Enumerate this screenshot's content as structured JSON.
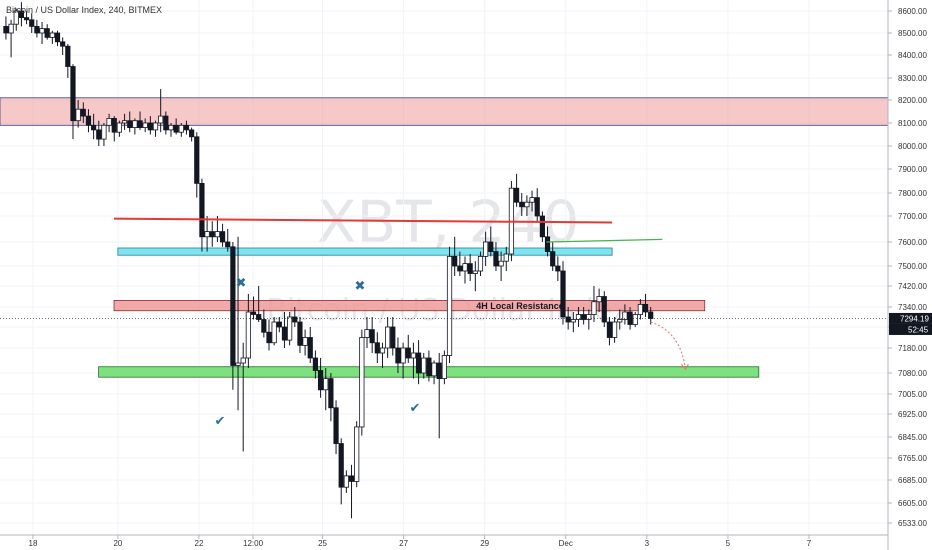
{
  "header": {
    "title": "Bitcoin / US Dollar Index, 240, BITMEX"
  },
  "watermark": {
    "symbol": "XBT, 240",
    "name": "Bitcoin / US Dollar Index"
  },
  "price_axis": {
    "current_price": "7294.19",
    "countdown": "52:45",
    "current_price_color": "#131722",
    "countdown_color": "#131722"
  },
  "colors": {
    "up_candle": "#ffffff",
    "down_candle": "#131722",
    "resistance_zone": "#ef9a9a",
    "support_zone": "#66dd66",
    "mid_zone": "#66e0f0",
    "red_line": "#e53935",
    "green_line": "#4caf50",
    "mark_color": "#2c6e96",
    "projection": "#e57373"
  },
  "annotations": {
    "local_resistance_label": "4H Local Resistance",
    "x_mark": "✖",
    "check_mark": "✔"
  },
  "chart_data": {
    "type": "candlestick",
    "title": "Bitcoin / US Dollar Index, 240, BITMEX",
    "ylim": [
      6480,
      8680
    ],
    "y_ticks": [
      {
        "value": 8600,
        "label": "8600.00"
      },
      {
        "value": 8500,
        "label": "8500.00"
      },
      {
        "value": 8400,
        "label": "8400.00"
      },
      {
        "value": 8300,
        "label": "8300.00"
      },
      {
        "value": 8200,
        "label": "8200.00"
      },
      {
        "value": 8100,
        "label": "8100.00"
      },
      {
        "value": 8000,
        "label": "8000.00"
      },
      {
        "value": 7900,
        "label": "7900.00"
      },
      {
        "value": 7800,
        "label": "7800.00"
      },
      {
        "value": 7700,
        "label": "7700.00"
      },
      {
        "value": 7600,
        "label": "7600.00"
      },
      {
        "value": 7500,
        "label": "7500.00"
      },
      {
        "value": 7420,
        "label": "7420.00"
      },
      {
        "value": 7340,
        "label": "7340.00"
      },
      {
        "value": 7260,
        "label": "7260.00"
      },
      {
        "value": 7180,
        "label": "7180.00"
      },
      {
        "value": 7080,
        "label": "7080.00"
      },
      {
        "value": 7005,
        "label": "7005.00"
      },
      {
        "value": 6925,
        "label": "6925.00"
      },
      {
        "value": 6845,
        "label": "6845.00"
      },
      {
        "value": 6765,
        "label": "6765.00"
      },
      {
        "value": 6685,
        "label": "6685.00"
      },
      {
        "value": 6605,
        "label": "6605.00"
      },
      {
        "value": 6533,
        "label": "6533.00"
      }
    ],
    "x_ticks": [
      "18",
      "20",
      "22",
      "12:00",
      "25",
      "27",
      "29",
      "Dec",
      "3",
      "5",
      "7"
    ],
    "x_tick_index": [
      7,
      29,
      50,
      64,
      82,
      103,
      124,
      145,
      166,
      187,
      208
    ],
    "bar_count": 230,
    "candles": [
      [
        8530,
        8575,
        8470,
        8500
      ],
      [
        8500,
        8560,
        8390,
        8540
      ],
      [
        8540,
        8610,
        8510,
        8600
      ],
      [
        8600,
        8640,
        8530,
        8570
      ],
      [
        8570,
        8600,
        8540,
        8560
      ],
      [
        8560,
        8590,
        8500,
        8530
      ],
      [
        8530,
        8560,
        8480,
        8500
      ],
      [
        8500,
        8550,
        8450,
        8520
      ],
      [
        8520,
        8540,
        8470,
        8480
      ],
      [
        8480,
        8510,
        8450,
        8500
      ],
      [
        8500,
        8510,
        8440,
        8460
      ],
      [
        8460,
        8480,
        8400,
        8440
      ],
      [
        8440,
        8450,
        8300,
        8350
      ],
      [
        8350,
        8360,
        8030,
        8110
      ],
      [
        8110,
        8200,
        8080,
        8160
      ],
      [
        8160,
        8190,
        8100,
        8130
      ],
      [
        8130,
        8160,
        8060,
        8090
      ],
      [
        8090,
        8140,
        8030,
        8070
      ],
      [
        8070,
        8110,
        8000,
        8030
      ],
      [
        8030,
        8100,
        8000,
        8090
      ],
      [
        8090,
        8140,
        8060,
        8120
      ],
      [
        8120,
        8130,
        8020,
        8060
      ],
      [
        8060,
        8110,
        8040,
        8100
      ],
      [
        8100,
        8140,
        8070,
        8110
      ],
      [
        8110,
        8150,
        8060,
        8080
      ],
      [
        8080,
        8120,
        8050,
        8110
      ],
      [
        8110,
        8150,
        8070,
        8080
      ],
      [
        8080,
        8120,
        8060,
        8100
      ],
      [
        8100,
        8130,
        8050,
        8070
      ],
      [
        8070,
        8110,
        8040,
        8100
      ],
      [
        8100,
        8250,
        8060,
        8130
      ],
      [
        8130,
        8150,
        8050,
        8070
      ],
      [
        8070,
        8100,
        8040,
        8090
      ],
      [
        8090,
        8120,
        8050,
        8060
      ],
      [
        8060,
        8100,
        8040,
        8090
      ],
      [
        8090,
        8110,
        8050,
        8070
      ],
      [
        8070,
        8080,
        8020,
        8040
      ],
      [
        8040,
        8060,
        7780,
        7840
      ],
      [
        7840,
        7860,
        7560,
        7620
      ],
      [
        7620,
        7700,
        7560,
        7640
      ],
      [
        7640,
        7680,
        7580,
        7620
      ],
      [
        7620,
        7700,
        7600,
        7640
      ],
      [
        7640,
        7670,
        7580,
        7600
      ],
      [
        7600,
        7650,
        7560,
        7580
      ],
      [
        7580,
        7600,
        7020,
        7110
      ],
      [
        7110,
        7620,
        6940,
        7120
      ],
      [
        7120,
        7200,
        6790,
        7140
      ],
      [
        7140,
        7390,
        7100,
        7320
      ],
      [
        7320,
        7380,
        7290,
        7310
      ],
      [
        7310,
        7420,
        7280,
        7290
      ],
      [
        7290,
        7330,
        7220,
        7240
      ],
      [
        7240,
        7290,
        7170,
        7200
      ],
      [
        7200,
        7300,
        7190,
        7280
      ],
      [
        7280,
        7300,
        7240,
        7260
      ],
      [
        7260,
        7320,
        7180,
        7210
      ],
      [
        7210,
        7320,
        7190,
        7300
      ],
      [
        7300,
        7340,
        7260,
        7280
      ],
      [
        7280,
        7300,
        7160,
        7190
      ],
      [
        7190,
        7250,
        7150,
        7220
      ],
      [
        7220,
        7260,
        7120,
        7140
      ],
      [
        7140,
        7170,
        7060,
        7090
      ],
      [
        7090,
        7140,
        6990,
        7020
      ],
      [
        7020,
        7100,
        6940,
        7060
      ],
      [
        7060,
        7080,
        6900,
        6950
      ],
      [
        6950,
        6980,
        6780,
        6820
      ],
      [
        6820,
        6840,
        6600,
        6660
      ],
      [
        6660,
        6720,
        6640,
        6700
      ],
      [
        6700,
        6740,
        6550,
        6680
      ],
      [
        6680,
        6900,
        6660,
        6880
      ],
      [
        6880,
        7250,
        6850,
        7220
      ],
      [
        7220,
        7300,
        7180,
        7250
      ],
      [
        7250,
        7300,
        7160,
        7200
      ],
      [
        7200,
        7240,
        7120,
        7160
      ],
      [
        7160,
        7200,
        7100,
        7180
      ],
      [
        7180,
        7300,
        7140,
        7260
      ],
      [
        7260,
        7300,
        7150,
        7180
      ],
      [
        7180,
        7220,
        7080,
        7120
      ],
      [
        7120,
        7200,
        7060,
        7180
      ],
      [
        7180,
        7230,
        7120,
        7140
      ],
      [
        7140,
        7200,
        7060,
        7160
      ],
      [
        7160,
        7210,
        7040,
        7080
      ],
      [
        7080,
        7160,
        7060,
        7140
      ],
      [
        7140,
        7170,
        7050,
        7070
      ],
      [
        7070,
        7130,
        7040,
        7120
      ],
      [
        7120,
        7160,
        6840,
        7060
      ],
      [
        7060,
        7170,
        7040,
        7150
      ],
      [
        7150,
        7580,
        7120,
        7540
      ],
      [
        7540,
        7620,
        7460,
        7500
      ],
      [
        7500,
        7560,
        7460,
        7480
      ],
      [
        7480,
        7540,
        7430,
        7510
      ],
      [
        7510,
        7550,
        7440,
        7470
      ],
      [
        7470,
        7520,
        7400,
        7480
      ],
      [
        7480,
        7560,
        7460,
        7540
      ],
      [
        7540,
        7640,
        7500,
        7600
      ],
      [
        7600,
        7660,
        7540,
        7560
      ],
      [
        7560,
        7600,
        7480,
        7500
      ],
      [
        7500,
        7560,
        7440,
        7520
      ],
      [
        7520,
        7580,
        7480,
        7550
      ],
      [
        7550,
        7850,
        7520,
        7820
      ],
      [
        7820,
        7880,
        7740,
        7760
      ],
      [
        7760,
        7800,
        7700,
        7740
      ],
      [
        7740,
        7790,
        7700,
        7760
      ],
      [
        7760,
        7810,
        7720,
        7780
      ],
      [
        7780,
        7820,
        7680,
        7700
      ],
      [
        7700,
        7720,
        7600,
        7620
      ],
      [
        7620,
        7660,
        7540,
        7560
      ],
      [
        7560,
        7600,
        7480,
        7500
      ],
      [
        7500,
        7540,
        7440,
        7480
      ],
      [
        7480,
        7520,
        7270,
        7300
      ],
      [
        7300,
        7340,
        7250,
        7280
      ],
      [
        7280,
        7320,
        7240,
        7290
      ],
      [
        7290,
        7340,
        7260,
        7310
      ],
      [
        7310,
        7340,
        7270,
        7290
      ],
      [
        7290,
        7330,
        7250,
        7310
      ],
      [
        7310,
        7420,
        7280,
        7360
      ],
      [
        7360,
        7410,
        7320,
        7380
      ],
      [
        7380,
        7400,
        7260,
        7280
      ],
      [
        7280,
        7300,
        7190,
        7220
      ],
      [
        7220,
        7300,
        7200,
        7280
      ],
      [
        7280,
        7330,
        7250,
        7290
      ],
      [
        7290,
        7350,
        7270,
        7320
      ],
      [
        7320,
        7340,
        7250,
        7270
      ],
      [
        7270,
        7320,
        7260,
        7310
      ],
      [
        7310,
        7370,
        7290,
        7350
      ],
      [
        7350,
        7390,
        7300,
        7320
      ],
      [
        7320,
        7340,
        7270,
        7294
      ]
    ],
    "zones": [
      {
        "name": "upper-resistance",
        "from": 8090,
        "to": 8210,
        "bar_start": 0,
        "bar_end": 230
      },
      {
        "name": "mid-level",
        "from": 7545,
        "to": 7575,
        "bar_start": 29,
        "bar_end": 157
      },
      {
        "name": "local-resistance",
        "from": 7325,
        "to": 7365,
        "bar_start": 28,
        "bar_end": 181
      },
      {
        "name": "support",
        "from": 7065,
        "to": 7105,
        "bar_start": 24,
        "bar_end": 195
      }
    ],
    "lines": [
      {
        "name": "red-trend",
        "y1": 7690,
        "y2": 7675,
        "bar_start": 28,
        "bar_end": 157
      },
      {
        "name": "green-trend",
        "y1": 7600,
        "y2": 7610,
        "bar_start": 140,
        "bar_end": 170
      }
    ],
    "projection": {
      "bar_start": 167,
      "bar_end": 176,
      "y_start": 7280,
      "y_end": 7095
    }
  }
}
